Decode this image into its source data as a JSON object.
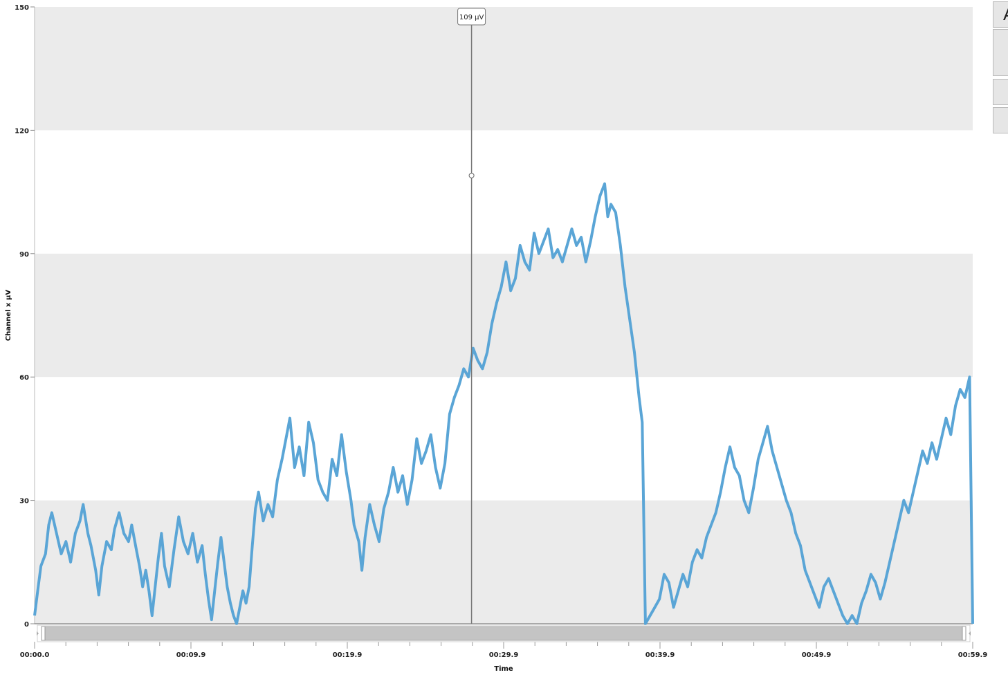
{
  "chart_data": {
    "type": "line",
    "ylabel": "Channel x µV",
    "xlabel": "Time",
    "ylim": [
      0,
      150
    ],
    "yticks": [
      0,
      30,
      60,
      90,
      120,
      150
    ],
    "xlim": [
      0,
      59.9
    ],
    "xtick_labels": [
      "00:00.0",
      "00:09.9",
      "00:19.9",
      "00:29.9",
      "00:39.9",
      "00:49.9",
      "00:59.9"
    ],
    "grid": "alternating horizontal bands",
    "colors": {
      "line": "#5aa5d6",
      "band": "#ebebeb",
      "cursor": "#777777"
    },
    "cursor": {
      "x": 27.9,
      "y": 109,
      "label": "109 µV"
    },
    "series": [
      {
        "points": [
          [
            0.0,
            2
          ],
          [
            0.2,
            8
          ],
          [
            0.4,
            14
          ],
          [
            0.7,
            17
          ],
          [
            0.9,
            24
          ],
          [
            1.1,
            27
          ],
          [
            1.4,
            22
          ],
          [
            1.7,
            17
          ],
          [
            2.0,
            20
          ],
          [
            2.3,
            15
          ],
          [
            2.6,
            22
          ],
          [
            2.9,
            25
          ],
          [
            3.1,
            29
          ],
          [
            3.4,
            22
          ],
          [
            3.6,
            19
          ],
          [
            3.9,
            13
          ],
          [
            4.1,
            7
          ],
          [
            4.3,
            14
          ],
          [
            4.6,
            20
          ],
          [
            4.9,
            18
          ],
          [
            5.1,
            23
          ],
          [
            5.4,
            27
          ],
          [
            5.7,
            22
          ],
          [
            6.0,
            20
          ],
          [
            6.2,
            24
          ],
          [
            6.5,
            18
          ],
          [
            6.7,
            14
          ],
          [
            6.9,
            9
          ],
          [
            7.1,
            13
          ],
          [
            7.3,
            8
          ],
          [
            7.5,
            2
          ],
          [
            7.7,
            9
          ],
          [
            7.9,
            16
          ],
          [
            8.1,
            22
          ],
          [
            8.3,
            14
          ],
          [
            8.6,
            9
          ],
          [
            8.9,
            18
          ],
          [
            9.2,
            26
          ],
          [
            9.5,
            20
          ],
          [
            9.8,
            17
          ],
          [
            10.1,
            22
          ],
          [
            10.4,
            15
          ],
          [
            10.7,
            19
          ],
          [
            10.9,
            12
          ],
          [
            11.1,
            6
          ],
          [
            11.3,
            1
          ],
          [
            11.5,
            8
          ],
          [
            11.7,
            15
          ],
          [
            11.9,
            21
          ],
          [
            12.1,
            15
          ],
          [
            12.3,
            9
          ],
          [
            12.5,
            5
          ],
          [
            12.7,
            2
          ],
          [
            12.9,
            0
          ],
          [
            13.1,
            4
          ],
          [
            13.3,
            8
          ],
          [
            13.5,
            5
          ],
          [
            13.7,
            9
          ],
          [
            13.9,
            19
          ],
          [
            14.1,
            28
          ],
          [
            14.3,
            32
          ],
          [
            14.6,
            25
          ],
          [
            14.9,
            29
          ],
          [
            15.2,
            26
          ],
          [
            15.5,
            35
          ],
          [
            15.8,
            40
          ],
          [
            16.1,
            46
          ],
          [
            16.3,
            50
          ],
          [
            16.6,
            38
          ],
          [
            16.9,
            43
          ],
          [
            17.2,
            36
          ],
          [
            17.5,
            49
          ],
          [
            17.8,
            44
          ],
          [
            18.1,
            35
          ],
          [
            18.4,
            32
          ],
          [
            18.7,
            30
          ],
          [
            19.0,
            40
          ],
          [
            19.3,
            36
          ],
          [
            19.6,
            46
          ],
          [
            19.9,
            37
          ],
          [
            20.2,
            30
          ],
          [
            20.4,
            24
          ],
          [
            20.7,
            20
          ],
          [
            20.9,
            13
          ],
          [
            21.1,
            21
          ],
          [
            21.4,
            29
          ],
          [
            21.7,
            24
          ],
          [
            22.0,
            20
          ],
          [
            22.3,
            28
          ],
          [
            22.6,
            32
          ],
          [
            22.9,
            38
          ],
          [
            23.2,
            32
          ],
          [
            23.5,
            36
          ],
          [
            23.8,
            29
          ],
          [
            24.1,
            35
          ],
          [
            24.4,
            45
          ],
          [
            24.7,
            39
          ],
          [
            25.0,
            42
          ],
          [
            25.3,
            46
          ],
          [
            25.6,
            38
          ],
          [
            25.9,
            33
          ],
          [
            26.2,
            39
          ],
          [
            26.5,
            51
          ],
          [
            26.8,
            55
          ],
          [
            27.1,
            58
          ],
          [
            27.4,
            62
          ],
          [
            27.7,
            60
          ],
          [
            28.0,
            67
          ],
          [
            28.3,
            64
          ],
          [
            28.6,
            62
          ],
          [
            28.9,
            66
          ],
          [
            29.2,
            73
          ],
          [
            29.5,
            78
          ],
          [
            29.8,
            82
          ],
          [
            30.1,
            88
          ],
          [
            30.4,
            81
          ],
          [
            30.7,
            84
          ],
          [
            31.0,
            92
          ],
          [
            31.3,
            88
          ],
          [
            31.6,
            86
          ],
          [
            31.9,
            95
          ],
          [
            32.2,
            90
          ],
          [
            32.5,
            93
          ],
          [
            32.8,
            96
          ],
          [
            33.1,
            89
          ],
          [
            33.4,
            91
          ],
          [
            33.7,
            88
          ],
          [
            34.0,
            92
          ],
          [
            34.3,
            96
          ],
          [
            34.6,
            92
          ],
          [
            34.9,
            94
          ],
          [
            35.2,
            88
          ],
          [
            35.5,
            93
          ],
          [
            35.8,
            99
          ],
          [
            36.1,
            104
          ],
          [
            36.4,
            107
          ],
          [
            36.6,
            99
          ],
          [
            36.8,
            102
          ],
          [
            37.1,
            100
          ],
          [
            37.4,
            92
          ],
          [
            37.7,
            82
          ],
          [
            38.0,
            74
          ],
          [
            38.3,
            66
          ],
          [
            38.6,
            55
          ],
          [
            38.8,
            49
          ],
          [
            39.0,
            0
          ],
          [
            39.3,
            2
          ],
          [
            39.6,
            4
          ],
          [
            39.9,
            6
          ],
          [
            40.2,
            12
          ],
          [
            40.5,
            10
          ],
          [
            40.8,
            4
          ],
          [
            41.1,
            8
          ],
          [
            41.4,
            12
          ],
          [
            41.7,
            9
          ],
          [
            42.0,
            15
          ],
          [
            42.3,
            18
          ],
          [
            42.6,
            16
          ],
          [
            42.9,
            21
          ],
          [
            43.2,
            24
          ],
          [
            43.5,
            27
          ],
          [
            43.8,
            32
          ],
          [
            44.1,
            38
          ],
          [
            44.4,
            43
          ],
          [
            44.7,
            38
          ],
          [
            45.0,
            36
          ],
          [
            45.3,
            30
          ],
          [
            45.6,
            27
          ],
          [
            45.9,
            33
          ],
          [
            46.2,
            40
          ],
          [
            46.5,
            44
          ],
          [
            46.8,
            48
          ],
          [
            47.1,
            42
          ],
          [
            47.4,
            38
          ],
          [
            47.7,
            34
          ],
          [
            48.0,
            30
          ],
          [
            48.3,
            27
          ],
          [
            48.6,
            22
          ],
          [
            48.9,
            19
          ],
          [
            49.2,
            13
          ],
          [
            49.5,
            10
          ],
          [
            49.8,
            7
          ],
          [
            50.1,
            4
          ],
          [
            50.4,
            9
          ],
          [
            50.7,
            11
          ],
          [
            51.0,
            8
          ],
          [
            51.3,
            5
          ],
          [
            51.6,
            2
          ],
          [
            51.9,
            0
          ],
          [
            52.2,
            2
          ],
          [
            52.5,
            0
          ],
          [
            52.8,
            5
          ],
          [
            53.1,
            8
          ],
          [
            53.4,
            12
          ],
          [
            53.7,
            10
          ],
          [
            54.0,
            6
          ],
          [
            54.3,
            10
          ],
          [
            54.6,
            15
          ],
          [
            54.9,
            20
          ],
          [
            55.2,
            25
          ],
          [
            55.5,
            30
          ],
          [
            55.8,
            27
          ],
          [
            56.1,
            32
          ],
          [
            56.4,
            37
          ],
          [
            56.7,
            42
          ],
          [
            57.0,
            39
          ],
          [
            57.3,
            44
          ],
          [
            57.6,
            40
          ],
          [
            57.9,
            45
          ],
          [
            58.2,
            50
          ],
          [
            58.5,
            46
          ],
          [
            58.8,
            53
          ],
          [
            59.1,
            57
          ],
          [
            59.4,
            55
          ],
          [
            59.7,
            60
          ],
          [
            59.9,
            0
          ]
        ]
      }
    ]
  },
  "side_panel": {
    "top_button_label": "A"
  }
}
